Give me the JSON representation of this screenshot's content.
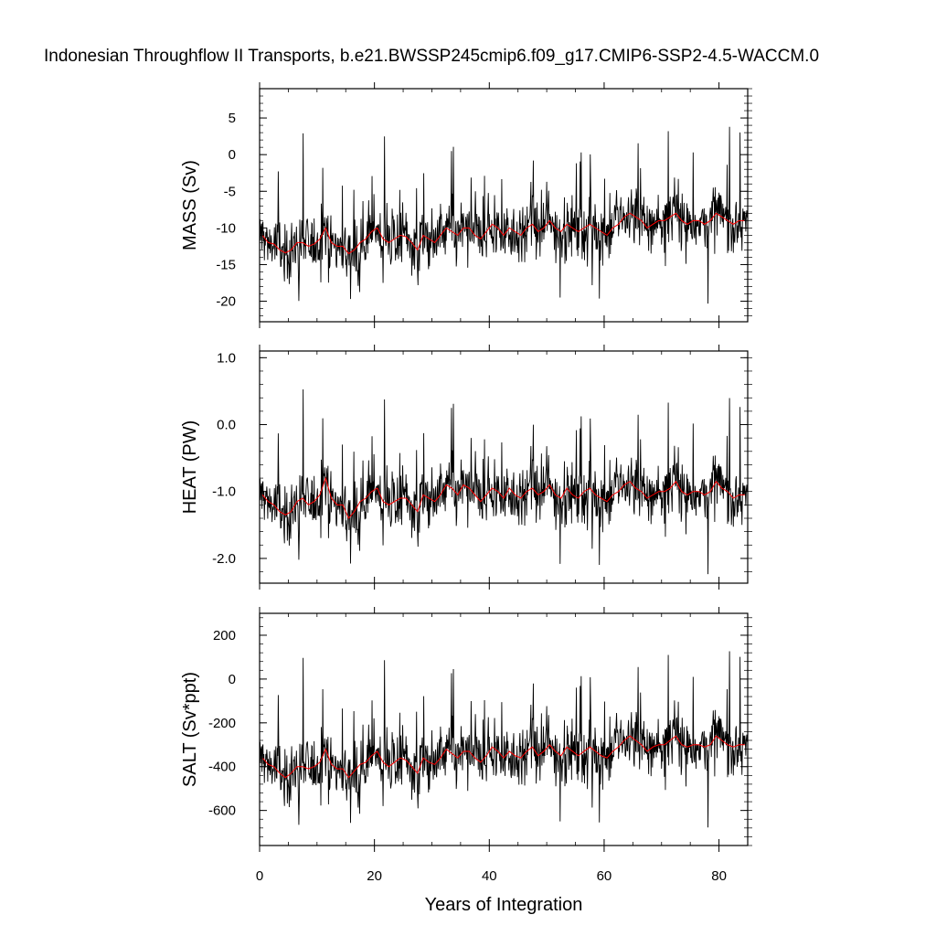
{
  "chart_data": {
    "type": "line",
    "title": "Indonesian Throughflow II Transports, b.e21.BWSSP245cmip6.f09_g17.CMIP6-SSP2-4.5-WACCM.0",
    "xlabel": "Years of Integration",
    "xlim": [
      0,
      85
    ],
    "x_ticks": [
      0,
      20,
      40,
      60,
      80
    ],
    "x_tick_labels": [
      "0",
      "20",
      "40",
      "60",
      "80"
    ],
    "grid": false,
    "legend": "none",
    "colors": {
      "monthly": "#000000",
      "annual": "#ff0000"
    },
    "series_note_months": 1020,
    "panels": [
      {
        "ylabel": "MASS (Sv)",
        "ylim": [
          -22.8,
          9.0
        ],
        "y_ticks": [
          5,
          0,
          -5,
          -10,
          -15,
          -20
        ],
        "y_tick_labels": [
          "5",
          "0",
          "-5",
          "-10",
          "-15",
          "-20"
        ],
        "annual_mean": [
          -11.0,
          -12.0,
          -12.2,
          -13.0,
          -13.4,
          -13.0,
          -12.0,
          -12.0,
          -12.5,
          -12.2,
          -11.5,
          -10.0,
          -12.0,
          -12.5,
          -12.5,
          -13.5,
          -13.0,
          -12.0,
          -11.5,
          -10.5,
          -10.0,
          -11.5,
          -12.0,
          -11.5,
          -11.0,
          -11.2,
          -12.0,
          -13.0,
          -11.0,
          -11.5,
          -12.0,
          -11.0,
          -10.0,
          -10.5,
          -11.0,
          -10.0,
          -10.0,
          -11.0,
          -11.5,
          -10.5,
          -9.5,
          -10.0,
          -11.0,
          -10.0,
          -10.5,
          -11.0,
          -10.0,
          -9.5,
          -10.5,
          -10.0,
          -9.0,
          -10.0,
          -10.5,
          -9.5,
          -10.0,
          -10.5,
          -10.0,
          -9.5,
          -10.0,
          -10.5,
          -11.0,
          -10.0,
          -9.5,
          -8.5,
          -8.0,
          -8.5,
          -9.0,
          -10.0,
          -9.5,
          -9.0,
          -9.0,
          -8.5,
          -8.0,
          -9.0,
          -9.5,
          -9.0,
          -9.0,
          -9.5,
          -9.0,
          -8.0,
          -8.5,
          -9.0,
          -9.5,
          -9.0,
          -9.0
        ]
      },
      {
        "ylabel": "HEAT (PW)",
        "ylim": [
          -2.37,
          1.1
        ],
        "y_ticks": [
          1.0,
          0.0,
          -1.0,
          -2.0
        ],
        "y_tick_labels": [
          "1.0",
          "0.0",
          "-1.0",
          "-2.0"
        ],
        "annual_mean": [
          -1.05,
          -1.15,
          -1.2,
          -1.3,
          -1.35,
          -1.3,
          -1.15,
          -1.1,
          -1.2,
          -1.15,
          -1.05,
          -0.8,
          -1.1,
          -1.2,
          -1.2,
          -1.4,
          -1.3,
          -1.15,
          -1.1,
          -1.0,
          -0.95,
          -1.15,
          -1.2,
          -1.15,
          -1.1,
          -1.1,
          -1.2,
          -1.3,
          -1.05,
          -1.1,
          -1.15,
          -1.05,
          -0.9,
          -0.95,
          -1.05,
          -0.9,
          -0.95,
          -1.05,
          -1.15,
          -1.05,
          -0.95,
          -1.0,
          -1.1,
          -0.95,
          -1.05,
          -1.1,
          -1.0,
          -0.95,
          -1.05,
          -1.0,
          -0.9,
          -1.05,
          -1.1,
          -0.95,
          -1.05,
          -1.1,
          -1.0,
          -0.95,
          -1.05,
          -1.1,
          -1.15,
          -1.05,
          -1.0,
          -0.9,
          -0.85,
          -0.95,
          -1.0,
          -1.1,
          -1.05,
          -1.0,
          -1.0,
          -0.95,
          -0.85,
          -1.0,
          -1.05,
          -1.0,
          -1.0,
          -1.05,
          -1.0,
          -0.85,
          -0.95,
          -1.0,
          -1.1,
          -1.05,
          -1.05
        ]
      },
      {
        "ylabel": "SALT (Sv*ppt)",
        "ylim": [
          -760,
          300
        ],
        "y_ticks": [
          200,
          0,
          -200,
          -400,
          -600
        ],
        "y_tick_labels": [
          "200",
          "0",
          "-200",
          "-400",
          "-600"
        ],
        "annual_mean": [
          -360,
          -390,
          -400,
          -430,
          -450,
          -430,
          -400,
          -400,
          -410,
          -400,
          -380,
          -320,
          -390,
          -410,
          -410,
          -450,
          -420,
          -390,
          -380,
          -350,
          -330,
          -380,
          -400,
          -380,
          -360,
          -370,
          -400,
          -430,
          -360,
          -380,
          -390,
          -360,
          -320,
          -340,
          -360,
          -330,
          -330,
          -360,
          -380,
          -350,
          -310,
          -330,
          -360,
          -330,
          -350,
          -360,
          -330,
          -310,
          -350,
          -330,
          -300,
          -330,
          -350,
          -310,
          -330,
          -350,
          -330,
          -310,
          -330,
          -350,
          -360,
          -330,
          -310,
          -280,
          -260,
          -280,
          -300,
          -330,
          -310,
          -300,
          -300,
          -280,
          -260,
          -300,
          -310,
          -300,
          -300,
          -310,
          -300,
          -260,
          -280,
          -300,
          -310,
          -300,
          -300
        ]
      }
    ]
  }
}
